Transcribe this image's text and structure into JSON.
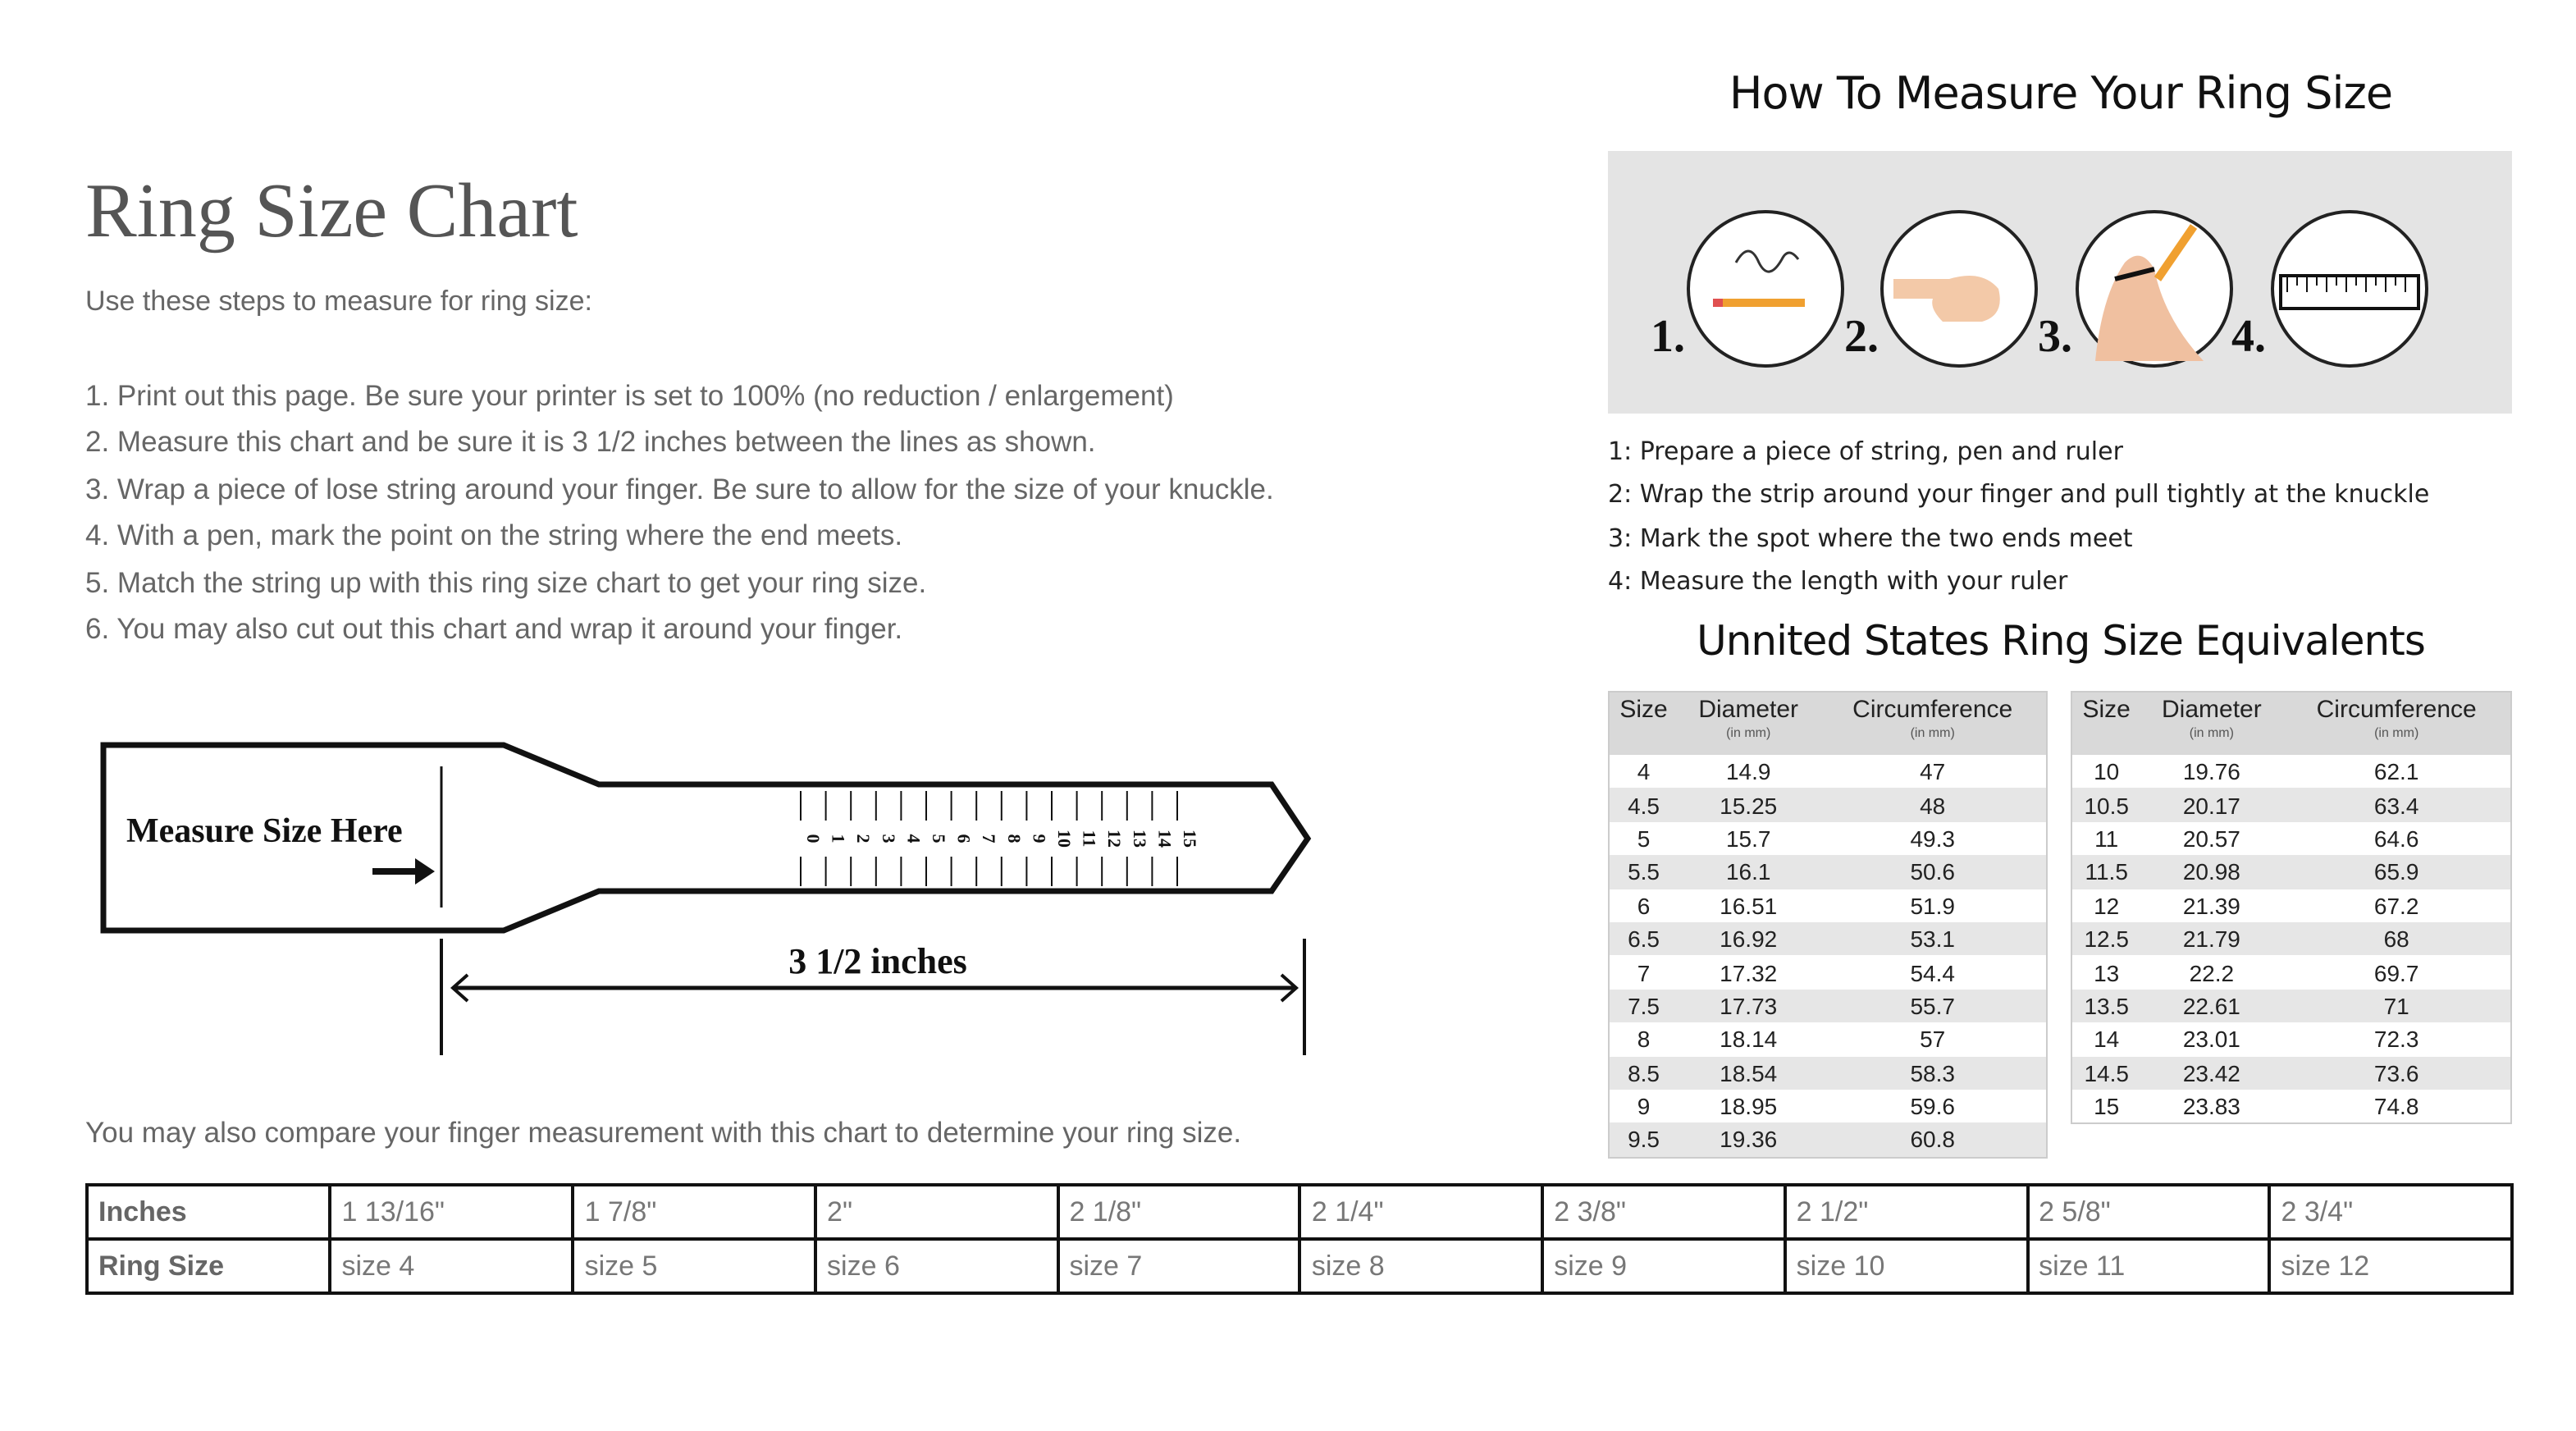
{
  "left": {
    "title": "Ring Size Chart",
    "subtitle": "Use these steps to measure for ring size:",
    "steps": [
      "1. Print out this page. Be sure your printer is set to 100% (no reduction / enlargement)",
      "2. Measure this chart and be sure it is 3 1/2 inches between the lines as shown.",
      "3. Wrap a piece of lose string around your finger. Be sure to allow for the size of your knuckle.",
      "4. With a pen, mark the point on the string where the end meets.",
      "5. Match the string up with this ring size chart to get your ring size.",
      "6. You may also cut out this chart and wrap it around your finger."
    ],
    "ruler": {
      "label": "Measure Size Here",
      "scale": [
        "0",
        "1",
        "2",
        "3",
        "4",
        "5",
        "6",
        "7",
        "8",
        "9",
        "10",
        "11",
        "12",
        "13",
        "14",
        "15"
      ],
      "length_label": "3 1/2 inches"
    },
    "note": "You may also compare your finger measurement with this chart to determine your ring size.",
    "size_table": {
      "inches_label": "Inches",
      "ring_size_label": "Ring Size",
      "inches": [
        "1 13/16\"",
        "1 7/8\"",
        "2\"",
        "2 1/8\"",
        "2 1/4\"",
        "2 3/8\"",
        "2 1/2\"",
        "2 5/8\"",
        "2 3/4\""
      ],
      "sizes": [
        "size 4",
        "size 5",
        "size 6",
        "size 7",
        "size 8",
        "size 9",
        "size 10",
        "size 11",
        "size 12"
      ]
    }
  },
  "right": {
    "title": "How To Measure Your Ring Size",
    "step_numbers": [
      "1.",
      "2.",
      "3.",
      "4."
    ],
    "instructions": [
      "1: Prepare a piece of string, pen and ruler",
      "2: Wrap the strip around your finger and pull tightly at the knuckle",
      "3: Mark the spot where the two ends meet",
      "4: Measure the length with your ruler"
    ],
    "equiv_title": "Unnited States Ring Size Equivalents",
    "headers": {
      "size": "Size",
      "diameter": "Diameter",
      "circumference": "Circumference",
      "unit": "(in mm)"
    },
    "rows_left": [
      [
        "4",
        "14.9",
        "47"
      ],
      [
        "4.5",
        "15.25",
        "48"
      ],
      [
        "5",
        "15.7",
        "49.3"
      ],
      [
        "5.5",
        "16.1",
        "50.6"
      ],
      [
        "6",
        "16.51",
        "51.9"
      ],
      [
        "6.5",
        "16.92",
        "53.1"
      ],
      [
        "7",
        "17.32",
        "54.4"
      ],
      [
        "7.5",
        "17.73",
        "55.7"
      ],
      [
        "8",
        "18.14",
        "57"
      ],
      [
        "8.5",
        "18.54",
        "58.3"
      ],
      [
        "9",
        "18.95",
        "59.6"
      ],
      [
        "9.5",
        "19.36",
        "60.8"
      ]
    ],
    "rows_right": [
      [
        "10",
        "19.76",
        "62.1"
      ],
      [
        "10.5",
        "20.17",
        "63.4"
      ],
      [
        "11",
        "20.57",
        "64.6"
      ],
      [
        "11.5",
        "20.98",
        "65.9"
      ],
      [
        "12",
        "21.39",
        "67.2"
      ],
      [
        "12.5",
        "21.79",
        "68"
      ],
      [
        "13",
        "22.2",
        "69.7"
      ],
      [
        "13.5",
        "22.61",
        "71"
      ],
      [
        "14",
        "23.01",
        "72.3"
      ],
      [
        "14.5",
        "23.42",
        "73.6"
      ],
      [
        "15",
        "23.83",
        "74.8"
      ]
    ]
  }
}
